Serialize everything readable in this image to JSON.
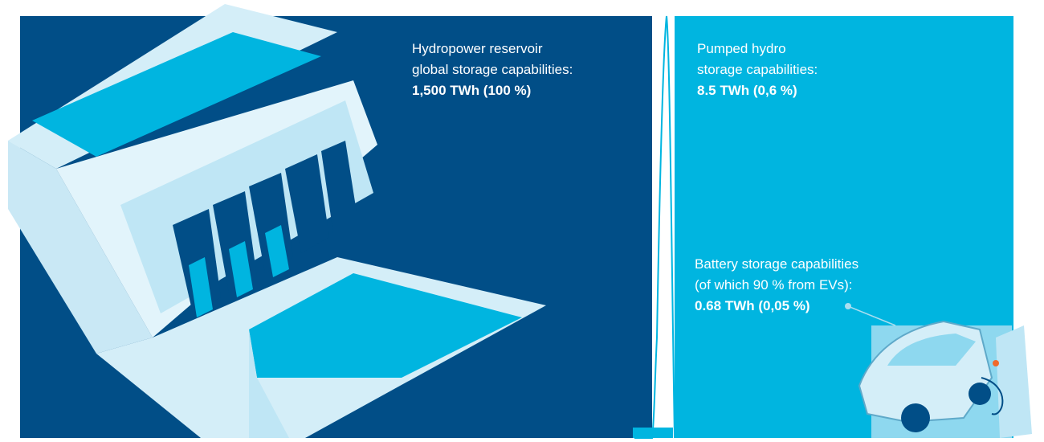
{
  "panels": [
    {
      "lines": [
        "Hydropower reservoir",
        "global storage capabilities:"
      ],
      "value": "1,500 TWh (100 %)"
    },
    {
      "lines": [
        "Pumped hydro",
        "storage capabilities:"
      ],
      "value": "8.5 TWh (0,6 %)"
    },
    {
      "lines": [
        "Battery storage capabilities",
        "(of which 90 % from EVs):"
      ],
      "value": "0.68 TWh (0,05 %)"
    }
  ]
}
